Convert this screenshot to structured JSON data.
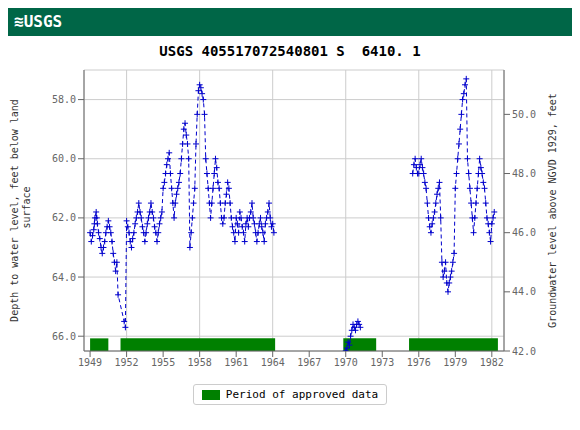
{
  "chart_data": {
    "type": "line",
    "title": "USGS 405517072540801 S  6410. 1",
    "annotations": [
      {
        "text": "≋USGS",
        "color": "#006647"
      }
    ],
    "ylabel": "Depth to water level, feet below land\n surface",
    "y2label": "Groundwater level above NGVD 1929, feet",
    "xlim": [
      1948.5,
      1983.0
    ],
    "xticks": [
      1949,
      1952,
      1955,
      1958,
      1961,
      1964,
      1967,
      1970,
      1973,
      1976,
      1979,
      1982
    ],
    "ylim": [
      66.5,
      57.0
    ],
    "yticks": [
      {
        "value": 58.0,
        "label": "58.0"
      },
      {
        "value": 60.0,
        "label": "60.0"
      },
      {
        "value": 62.0,
        "label": "62.0"
      },
      {
        "value": 64.0,
        "label": "64.0"
      },
      {
        "value": 66.0,
        "label": "66.0"
      }
    ],
    "y2lim": [
      42.0,
      51.5
    ],
    "y2ticks": [
      {
        "value": 50.0,
        "label": "50.0"
      },
      {
        "value": 48.0,
        "label": "48.0"
      },
      {
        "value": 46.0,
        "label": "46.0"
      },
      {
        "value": 44.0,
        "label": "44.0"
      },
      {
        "value": 42.0,
        "label": "42.0"
      }
    ],
    "grid": true,
    "series": [
      {
        "type": "line",
        "color": "#0000cc",
        "line_style": "dashed",
        "marker": "plus",
        "x": [
          1949.0,
          1949.1,
          1949.2,
          1949.3,
          1949.35,
          1949.4,
          1949.5,
          1949.55,
          1949.6,
          1949.7,
          1949.8,
          1949.9,
          1950.0,
          1950.1,
          1950.2,
          1950.3,
          1950.4,
          1950.5,
          1950.6,
          1950.7,
          1950.8,
          1950.9,
          1951.0,
          1951.1,
          1951.2,
          1951.3,
          1951.8,
          1951.9,
          1952.0,
          1952.1,
          1952.2,
          1952.3,
          1952.4,
          1952.5,
          1952.6,
          1952.7,
          1952.8,
          1952.9,
          1953.0,
          1953.1,
          1953.2,
          1953.3,
          1953.4,
          1953.5,
          1953.6,
          1953.7,
          1953.8,
          1953.9,
          1954.0,
          1954.1,
          1954.2,
          1954.3,
          1954.4,
          1954.5,
          1954.6,
          1954.7,
          1954.8,
          1954.9,
          1955.0,
          1955.1,
          1955.2,
          1955.3,
          1955.4,
          1955.5,
          1955.6,
          1955.7,
          1955.8,
          1955.9,
          1956.0,
          1956.1,
          1956.2,
          1956.3,
          1956.4,
          1956.5,
          1956.6,
          1956.7,
          1956.8,
          1956.9,
          1957.0,
          1957.1,
          1957.2,
          1957.3,
          1957.4,
          1957.5,
          1957.6,
          1957.7,
          1957.8,
          1957.9,
          1958.0,
          1958.1,
          1958.2,
          1958.3,
          1958.4,
          1958.5,
          1958.6,
          1958.7,
          1958.8,
          1958.9,
          1959.0,
          1959.1,
          1959.2,
          1959.3,
          1959.4,
          1959.5,
          1959.6,
          1959.7,
          1959.8,
          1959.9,
          1960.0,
          1960.1,
          1960.2,
          1960.3,
          1960.4,
          1960.5,
          1960.6,
          1960.7,
          1960.8,
          1960.9,
          1961.0,
          1961.1,
          1961.2,
          1961.3,
          1961.4,
          1961.5,
          1961.6,
          1961.7,
          1961.8,
          1961.9,
          1962.0,
          1962.1,
          1962.2,
          1962.3,
          1962.4,
          1962.5,
          1962.6,
          1962.7,
          1962.8,
          1962.9,
          1963.0,
          1963.1,
          1963.2,
          1963.3,
          1963.4,
          1963.5,
          1963.6,
          1963.7,
          1963.8,
          1963.9,
          1964.0,
          1964.1
        ],
        "values": [
          62.5,
          62.8,
          62.6,
          62.4,
          62.2,
          62.0,
          61.8,
          62.0,
          62.2,
          62.5,
          62.7,
          63.0,
          63.2,
          63.0,
          62.8,
          62.5,
          62.3,
          62.1,
          62.3,
          62.5,
          62.8,
          63.2,
          63.5,
          63.8,
          63.5,
          64.6,
          65.5,
          65.7,
          62.1,
          62.3,
          62.5,
          62.8,
          63.0,
          62.7,
          62.5,
          62.2,
          62.0,
          61.8,
          61.5,
          61.8,
          62.0,
          62.3,
          62.5,
          62.8,
          62.5,
          62.2,
          62.0,
          61.8,
          61.5,
          61.8,
          62.0,
          62.3,
          62.5,
          62.8,
          62.5,
          62.2,
          62.0,
          61.8,
          61.0,
          60.8,
          60.5,
          60.2,
          60.0,
          59.8,
          60.5,
          61.0,
          61.5,
          62.0,
          61.5,
          61.2,
          61.0,
          60.8,
          60.5,
          60.0,
          59.5,
          59.0,
          58.8,
          59.2,
          59.5,
          60.0,
          63.0,
          62.5,
          62.0,
          61.5,
          61.0,
          59.5,
          58.5,
          57.7,
          57.5,
          57.6,
          57.8,
          58.0,
          58.5,
          60.0,
          60.5,
          61.0,
          61.5,
          62.0,
          61.5,
          61.0,
          60.5,
          60.0,
          60.3,
          60.8,
          61.0,
          61.5,
          62.0,
          62.2,
          62.0,
          61.5,
          61.2,
          60.8,
          61.0,
          61.5,
          62.0,
          62.3,
          62.5,
          62.8,
          62.0,
          62.2,
          62.5,
          61.8,
          62.0,
          62.3,
          62.5,
          62.8,
          62.2,
          62.0,
          62.3,
          62.0,
          61.8,
          61.5,
          62.0,
          62.2,
          62.5,
          62.8,
          62.5,
          62.2,
          62.0,
          62.3,
          62.5,
          62.8,
          62.2,
          62.0,
          61.8,
          61.5,
          62.0,
          62.3,
          62.2,
          62.5
        ]
      },
      {
        "type": "line",
        "color": "#0000cc",
        "line_style": "dashed",
        "marker": "plus",
        "x": [
          1970.0,
          1970.1,
          1970.2,
          1970.3,
          1970.4,
          1970.5,
          1970.6,
          1970.7,
          1970.8,
          1970.9,
          1971.0,
          1971.1,
          1971.2
        ],
        "values": [
          66.5,
          66.4,
          66.2,
          66.3,
          66.0,
          65.8,
          65.6,
          65.7,
          65.8,
          65.6,
          65.5,
          65.6,
          65.7
        ]
      },
      {
        "type": "line",
        "color": "#0000cc",
        "line_style": "dashed",
        "marker": "plus",
        "x": [
          1975.5,
          1975.6,
          1975.7,
          1975.8,
          1975.9,
          1976.0,
          1976.1,
          1976.2,
          1976.3,
          1976.4,
          1976.5,
          1976.6,
          1976.7,
          1976.8,
          1976.9,
          1977.0,
          1977.1,
          1977.2,
          1977.3,
          1977.4,
          1977.5,
          1977.6,
          1977.7,
          1977.8,
          1977.9,
          1978.0,
          1978.1,
          1978.2,
          1978.3,
          1978.4,
          1978.5,
          1978.6,
          1978.7,
          1978.8,
          1978.9,
          1979.0,
          1979.1,
          1979.2,
          1979.3,
          1979.4,
          1979.5,
          1979.6,
          1979.7,
          1979.8,
          1979.9,
          1980.0,
          1980.1,
          1980.2,
          1980.3,
          1980.4,
          1980.5,
          1980.6,
          1980.7,
          1980.8,
          1980.9,
          1981.0,
          1981.1,
          1981.2,
          1981.3,
          1981.4,
          1981.5,
          1981.6,
          1981.7,
          1981.8,
          1981.9,
          1982.0,
          1982.1,
          1982.2
        ],
        "values": [
          60.5,
          60.2,
          60.0,
          60.3,
          60.5,
          60.5,
          60.2,
          60.0,
          60.3,
          60.5,
          60.8,
          61.0,
          61.5,
          62.0,
          62.3,
          62.5,
          62.2,
          62.0,
          61.8,
          61.5,
          61.2,
          61.0,
          60.8,
          62.0,
          63.5,
          64.0,
          63.8,
          63.5,
          64.2,
          64.5,
          64.2,
          64.0,
          63.8,
          63.5,
          63.2,
          61.0,
          60.5,
          60.0,
          59.5,
          59.0,
          58.5,
          58.0,
          57.8,
          57.5,
          57.3,
          60.0,
          60.5,
          61.0,
          61.5,
          62.0,
          62.5,
          62.0,
          61.5,
          61.0,
          60.5,
          60.0,
          60.3,
          60.5,
          60.8,
          61.0,
          61.5,
          62.0,
          62.2,
          62.5,
          62.8,
          62.2,
          62.0,
          61.8
        ]
      },
      {
        "type": "span",
        "name": "Period of approved data",
        "color": "#008000",
        "periods": [
          [
            1949.0,
            1950.5
          ],
          [
            1951.5,
            1964.2
          ],
          [
            1969.8,
            1972.5
          ],
          [
            1975.2,
            1982.5
          ]
        ]
      }
    ]
  }
}
